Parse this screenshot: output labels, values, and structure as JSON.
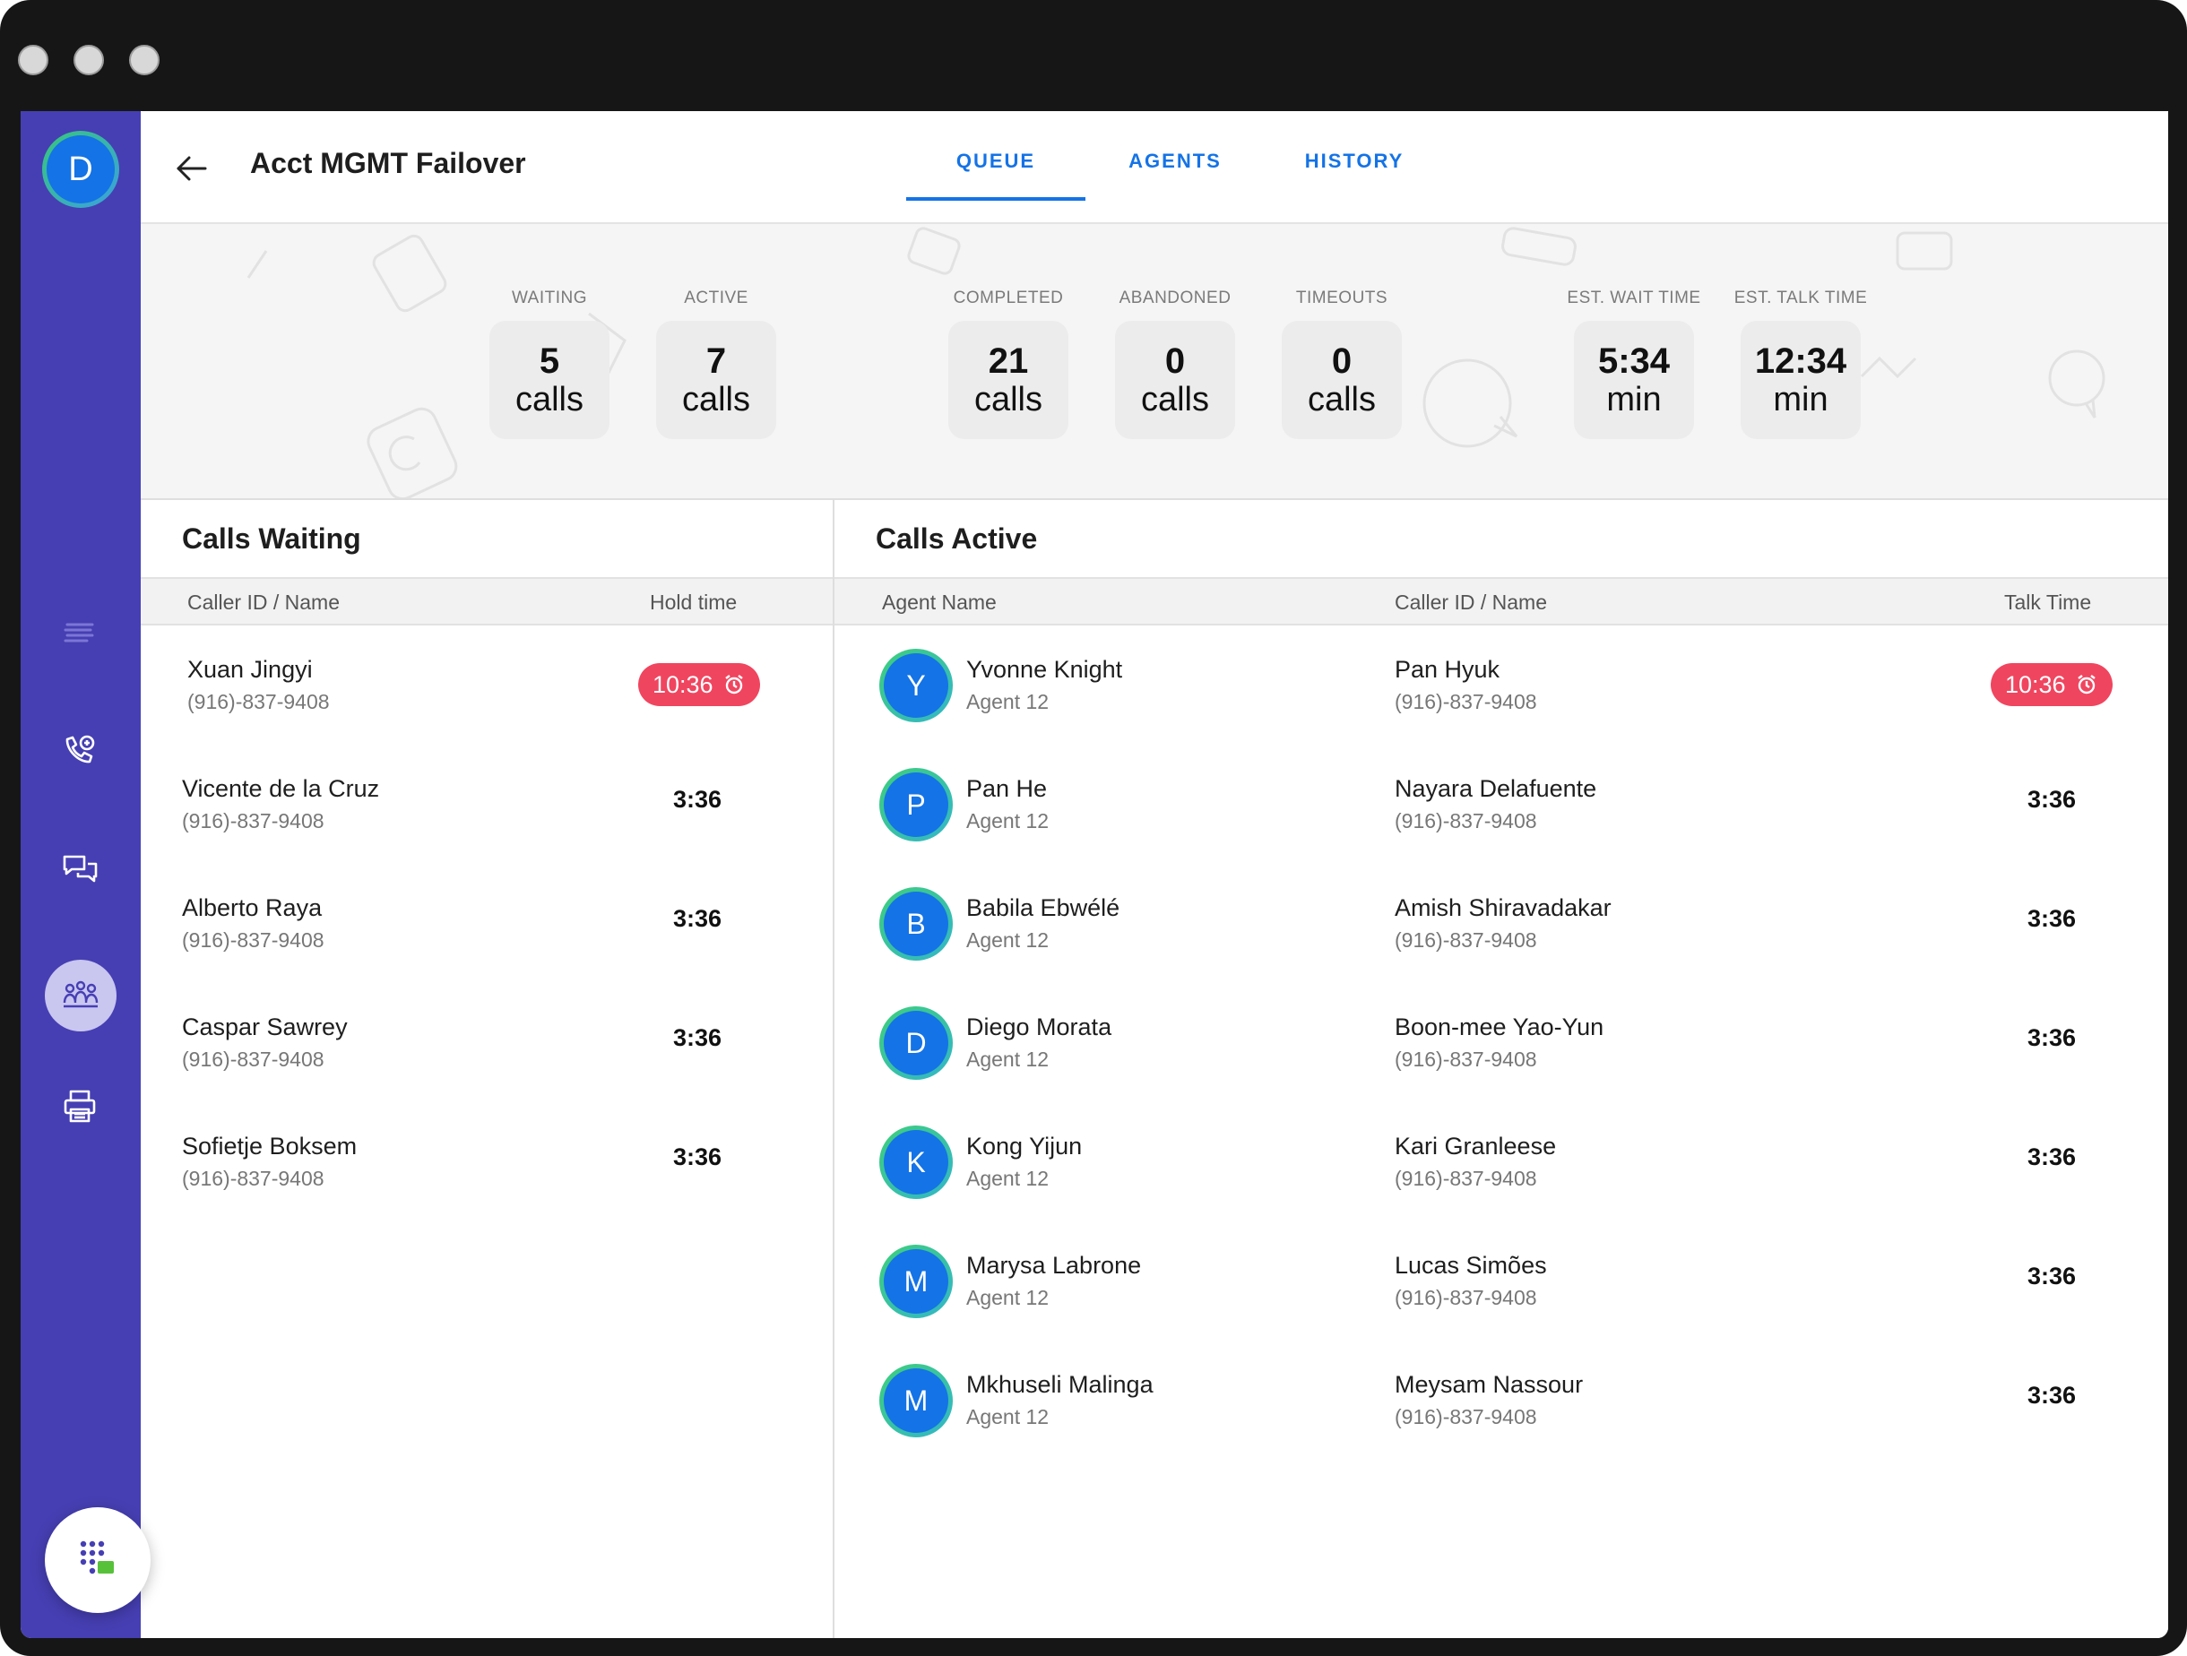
{
  "window": {
    "traffic_lights": [
      "close",
      "minimize",
      "zoom"
    ]
  },
  "sidebar": {
    "avatar_initial": "D",
    "icons": [
      "menu-lines-icon",
      "phone-voicemail-icon",
      "chat-bubbles-icon",
      "team-icon",
      "printer-icon"
    ],
    "active_icon": "team-icon",
    "fab_icon": "dialpad-icon"
  },
  "header": {
    "title": "Acct MGMT Failover",
    "tabs": [
      {
        "label": "QUEUE",
        "active": true
      },
      {
        "label": "AGENTS",
        "active": false
      },
      {
        "label": "HISTORY",
        "active": false
      }
    ]
  },
  "stats": [
    {
      "label": "WAITING",
      "value": "5",
      "unit": "calls"
    },
    {
      "label": "ACTIVE",
      "value": "7",
      "unit": "calls"
    },
    {
      "label": "COMPLETED",
      "value": "21",
      "unit": "calls"
    },
    {
      "label": "ABANDONED",
      "value": "0",
      "unit": "calls"
    },
    {
      "label": "TIMEOUTS",
      "value": "0",
      "unit": "calls"
    },
    {
      "label": "EST. WAIT TIME",
      "value": "5:34",
      "unit": "min"
    },
    {
      "label": "EST. TALK TIME",
      "value": "12:34",
      "unit": "min"
    }
  ],
  "calls_waiting": {
    "title": "Calls Waiting",
    "columns": [
      "Caller ID / Name",
      "Hold time"
    ],
    "rows": [
      {
        "name": "Xuan Jingyi",
        "phone": "(916)-837-9408",
        "time": "10:36",
        "alert": true
      },
      {
        "name": "Vicente de la Cruz",
        "phone": "(916)-837-9408",
        "time": "3:36",
        "alert": false
      },
      {
        "name": "Alberto Raya",
        "phone": "(916)-837-9408",
        "time": "3:36",
        "alert": false
      },
      {
        "name": "Caspar Sawrey",
        "phone": "(916)-837-9408",
        "time": "3:36",
        "alert": false
      },
      {
        "name": "Sofietje Boksem",
        "phone": "(916)-837-9408",
        "time": "3:36",
        "alert": false
      }
    ]
  },
  "calls_active": {
    "title": "Calls Active",
    "columns": [
      "Agent Name",
      "Caller ID / Name",
      "Talk Time"
    ],
    "rows": [
      {
        "initial": "Y",
        "agent": "Yvonne Knight",
        "agent_sub": "Agent 12",
        "caller": "Pan Hyuk",
        "phone": "(916)-837-9408",
        "time": "10:36",
        "alert": true
      },
      {
        "initial": "P",
        "agent": "Pan He",
        "agent_sub": "Agent 12",
        "caller": "Nayara Delafuente",
        "phone": "(916)-837-9408",
        "time": "3:36",
        "alert": false
      },
      {
        "initial": "B",
        "agent": "Babila Ebwélé",
        "agent_sub": "Agent 12",
        "caller": "Amish Shiravadakar",
        "phone": "(916)-837-9408",
        "time": "3:36",
        "alert": false
      },
      {
        "initial": "D",
        "agent": "Diego Morata",
        "agent_sub": "Agent 12",
        "caller": "Boon-mee Yao-Yun",
        "phone": "(916)-837-9408",
        "time": "3:36",
        "alert": false
      },
      {
        "initial": "K",
        "agent": "Kong Yijun",
        "agent_sub": "Agent 12",
        "caller": "Kari Granleese",
        "phone": "(916)-837-9408",
        "time": "3:36",
        "alert": false
      },
      {
        "initial": "M",
        "agent": "Marysa Labrone",
        "agent_sub": "Agent 12",
        "caller": "Lucas Simões",
        "phone": "(916)-837-9408",
        "time": "3:36",
        "alert": false
      },
      {
        "initial": "M",
        "agent": "Mkhuseli Malinga",
        "agent_sub": "Agent 12",
        "caller": "Meysam Nassour",
        "phone": "(916)-837-9408",
        "time": "3:36",
        "alert": false
      }
    ]
  },
  "colors": {
    "sidebar": "#463fb3",
    "accent": "#1473e6",
    "alert": "#f0455f",
    "avatar_ring": "#3ecf7a"
  }
}
